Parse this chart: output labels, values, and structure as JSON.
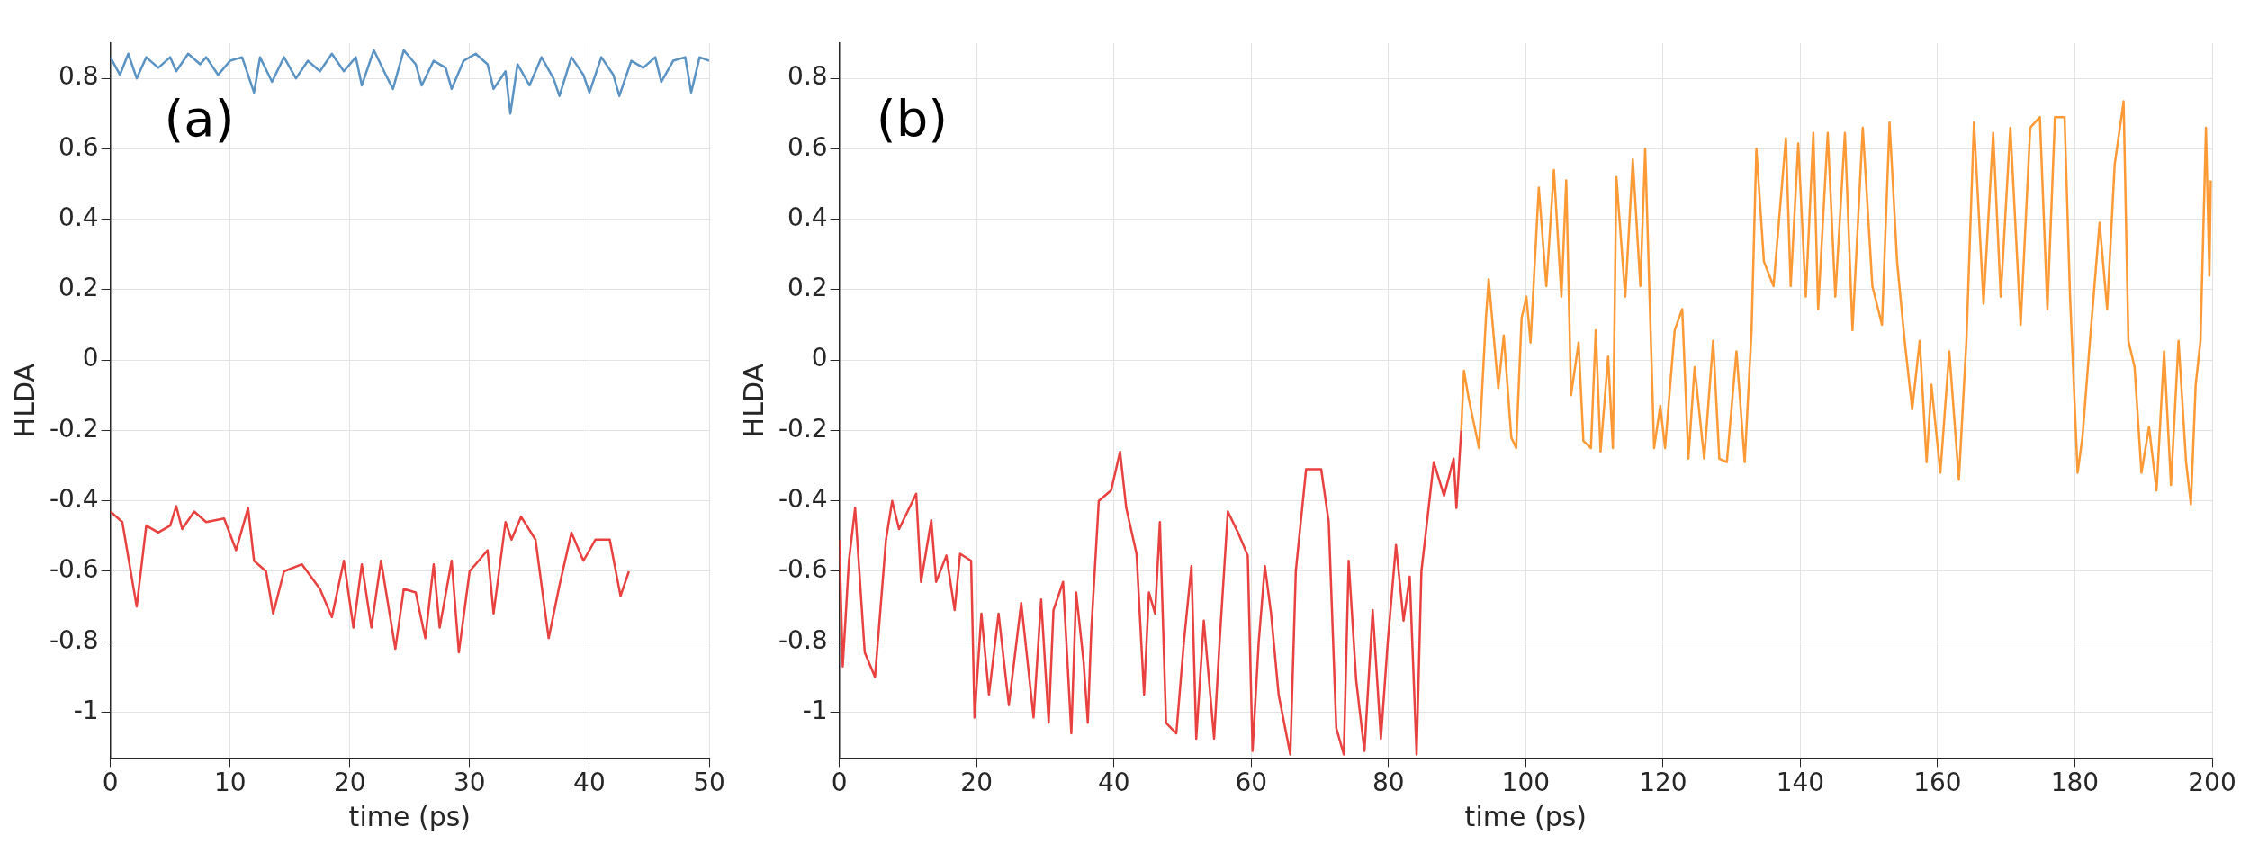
{
  "chart_data": [
    {
      "type": "line",
      "annotations": [
        "(a)"
      ],
      "xlabel": "time (ps)",
      "ylabel": "HLDA",
      "xlim": [
        0,
        50
      ],
      "xticks": [
        0,
        10,
        20,
        30,
        40,
        50
      ],
      "ylim": [
        -1.13,
        0.9
      ],
      "yticks": [
        -1,
        -0.8,
        -0.6,
        -0.4,
        -0.2,
        0,
        0.2,
        0.4,
        0.6,
        0.8
      ],
      "grid": true,
      "legend": false,
      "marker": "none",
      "line_style": "solid",
      "series": [
        {
          "color": "#5b93c4",
          "x": [
            0,
            0.8,
            1.5,
            2.2,
            3,
            4,
            5,
            5.5,
            6.5,
            7.5,
            8,
            9,
            10,
            11,
            12,
            12.5,
            13.5,
            14.5,
            15.5,
            16.5,
            17.5,
            18.5,
            19.5,
            20.5,
            21,
            22,
            23,
            23.6,
            24.5,
            25.5,
            26,
            27,
            28,
            28.5,
            29.5,
            30.5,
            31.5,
            32,
            33,
            33.4,
            34,
            35,
            36,
            37,
            37.5,
            38.5,
            39.5,
            40,
            41,
            42,
            42.5,
            43.5,
            44.5,
            45.5,
            46,
            47,
            48,
            48.5,
            49.2,
            50
          ],
          "values": [
            0.86,
            0.81,
            0.87,
            0.8,
            0.86,
            0.83,
            0.86,
            0.82,
            0.87,
            0.84,
            0.86,
            0.81,
            0.85,
            0.86,
            0.76,
            0.86,
            0.79,
            0.86,
            0.8,
            0.85,
            0.82,
            0.87,
            0.82,
            0.86,
            0.78,
            0.88,
            0.81,
            0.77,
            0.88,
            0.84,
            0.78,
            0.85,
            0.83,
            0.77,
            0.85,
            0.87,
            0.84,
            0.77,
            0.82,
            0.7,
            0.84,
            0.78,
            0.86,
            0.8,
            0.75,
            0.86,
            0.81,
            0.76,
            0.86,
            0.81,
            0.75,
            0.85,
            0.83,
            0.86,
            0.79,
            0.85,
            0.86,
            0.76,
            0.86,
            0.85
          ]
        },
        {
          "color": "#e8413f",
          "x": [
            0,
            1,
            2.2,
            3,
            4,
            5,
            5.5,
            6,
            7,
            8,
            9.5,
            10.5,
            11.5,
            12,
            13,
            13.6,
            14.5,
            16,
            17.5,
            18.5,
            19.5,
            20.3,
            21,
            21.8,
            22.6,
            23.8,
            24.5,
            25.5,
            26.3,
            27,
            27.5,
            28.5,
            29.1,
            30,
            31.5,
            32,
            33,
            33.5,
            34.3,
            35.5,
            36.6,
            37.5,
            38.5,
            39.5,
            40.5,
            41.7,
            42.6,
            43.3
          ],
          "values": [
            -0.43,
            -0.46,
            -0.7,
            -0.47,
            -0.49,
            -0.47,
            -0.415,
            -0.48,
            -0.43,
            -0.46,
            -0.45,
            -0.54,
            -0.42,
            -0.57,
            -0.6,
            -0.72,
            -0.6,
            -0.58,
            -0.65,
            -0.73,
            -0.57,
            -0.76,
            -0.58,
            -0.76,
            -0.57,
            -0.82,
            -0.65,
            -0.66,
            -0.79,
            -0.58,
            -0.76,
            -0.57,
            -0.83,
            -0.6,
            -0.54,
            -0.72,
            -0.46,
            -0.51,
            -0.445,
            -0.51,
            -0.79,
            -0.64,
            -0.49,
            -0.57,
            -0.51,
            -0.51,
            -0.67,
            -0.6
          ]
        }
      ]
    },
    {
      "type": "line",
      "annotations": [
        "(b)"
      ],
      "xlabel": "time (ps)",
      "ylabel": "HLDA",
      "xlim": [
        0,
        200
      ],
      "xticks": [
        0,
        20,
        40,
        60,
        80,
        100,
        120,
        140,
        160,
        180,
        200
      ],
      "ylim": [
        -1.13,
        0.9
      ],
      "yticks": [
        -1,
        -0.8,
        -0.6,
        -0.4,
        -0.2,
        0,
        0.2,
        0.4,
        0.6,
        0.8
      ],
      "grid": true,
      "legend": false,
      "marker": "none",
      "line_style": "solid",
      "series": [
        {
          "color": "#e8413f",
          "x": [
            0,
            0.5,
            1.4,
            2.3,
            3.7,
            5.2,
            6.8,
            7.7,
            8.7,
            11.2,
            11.9,
            13.4,
            14.1,
            15.6,
            16.8,
            17.6,
            19.2,
            19.7,
            20.7,
            21.8,
            23.2,
            24.7,
            26.5,
            28.3,
            29.4,
            30.5,
            31.2,
            32.6,
            33.8,
            34.5,
            35.6,
            36.2,
            36.7,
            37.8,
            39.6,
            40.9,
            41.8,
            43.3,
            44.4,
            45.1,
            46,
            46.7,
            47.6,
            49.1,
            50.2,
            51.3,
            52,
            53.1,
            54.6,
            55.4,
            56.6,
            58.2,
            59.5,
            60.2,
            61.1,
            62,
            62.9,
            64,
            65.7,
            66.5,
            68,
            70.2,
            71.3,
            72.4,
            73.5,
            74.2,
            75.3,
            76.5,
            77.7,
            78.9,
            79.9,
            81.1,
            82.2,
            83.1,
            84.1,
            84.8,
            85.5,
            86.6,
            88.1,
            89.5,
            89.9,
            90.6
          ],
          "values": [
            -0.51,
            -0.87,
            -0.57,
            -0.42,
            -0.83,
            -0.9,
            -0.51,
            -0.4,
            -0.48,
            -0.38,
            -0.63,
            -0.455,
            -0.63,
            -0.555,
            -0.71,
            -0.55,
            -0.57,
            -1.015,
            -0.72,
            -0.95,
            -0.72,
            -0.98,
            -0.69,
            -1.015,
            -0.68,
            -1.03,
            -0.71,
            -0.63,
            -1.06,
            -0.66,
            -0.86,
            -1.03,
            -0.77,
            -0.4,
            -0.37,
            -0.26,
            -0.42,
            -0.55,
            -0.95,
            -0.66,
            -0.72,
            -0.46,
            -1.03,
            -1.06,
            -0.8,
            -0.585,
            -1.075,
            -0.74,
            -1.075,
            -0.8,
            -0.43,
            -0.495,
            -0.555,
            -1.11,
            -0.8,
            -0.585,
            -0.72,
            -0.95,
            -1.12,
            -0.6,
            -0.31,
            -0.31,
            -0.46,
            -1.045,
            -1.12,
            -0.57,
            -0.91,
            -1.11,
            -0.71,
            -1.075,
            -0.8,
            -0.525,
            -0.74,
            -0.615,
            -1.12,
            -0.6,
            -0.48,
            -0.29,
            -0.385,
            -0.28,
            -0.42,
            -0.2
          ]
        },
        {
          "color": "#fd9a36",
          "x": [
            90.6,
            91,
            91.7,
            93.2,
            94.2,
            94.6,
            96,
            96.8,
            97.9,
            98.6,
            99.4,
            100.1,
            100.7,
            101.9,
            103,
            104.1,
            105.2,
            105.9,
            106.6,
            107.7,
            108.4,
            109.5,
            110.2,
            110.9,
            112,
            112.7,
            113.2,
            114.5,
            115.6,
            116.7,
            117.4,
            118.7,
            119.6,
            120.3,
            121.7,
            122.8,
            123.7,
            124.6,
            126,
            127.3,
            128.2,
            129.3,
            130.7,
            131.9,
            132.9,
            133.6,
            134.7,
            136.1,
            137.9,
            138.6,
            139.7,
            140.8,
            141.9,
            142.6,
            144,
            145.1,
            146.5,
            147.6,
            149.1,
            150.5,
            151.9,
            153,
            154.1,
            155.2,
            156.3,
            157.4,
            158.4,
            159.1,
            160.4,
            161.7,
            163.1,
            164.2,
            165.3,
            166.7,
            168.1,
            169.2,
            170.6,
            172.1,
            173.5,
            174.9,
            176,
            177.1,
            178.5,
            179.3,
            180.4,
            181.1,
            182.2,
            183.6,
            184.7,
            185.8,
            187.1,
            187.8,
            188.7,
            189.7,
            190.8,
            191.9,
            193,
            194,
            195.1,
            196.2,
            196.9,
            197.6,
            198.3,
            199.1,
            199.6,
            199.8
          ],
          "values": [
            -0.2,
            -0.03,
            -0.11,
            -0.25,
            0.12,
            0.23,
            -0.08,
            0.07,
            -0.22,
            -0.25,
            0.12,
            0.18,
            0.05,
            0.49,
            0.21,
            0.54,
            0.18,
            0.51,
            -0.1,
            0.05,
            -0.23,
            -0.25,
            0.085,
            -0.26,
            0.01,
            -0.25,
            0.52,
            0.18,
            0.57,
            0.21,
            0.6,
            -0.25,
            -0.13,
            -0.25,
            0.085,
            0.145,
            -0.28,
            -0.02,
            -0.28,
            0.055,
            -0.28,
            -0.29,
            0.025,
            -0.29,
            0.085,
            0.6,
            0.28,
            0.21,
            0.63,
            0.21,
            0.615,
            0.18,
            0.645,
            0.145,
            0.645,
            0.18,
            0.645,
            0.085,
            0.66,
            0.21,
            0.1,
            0.675,
            0.28,
            0.055,
            -0.14,
            0.055,
            -0.29,
            -0.07,
            -0.32,
            0.025,
            -0.34,
            0.055,
            0.675,
            0.16,
            0.645,
            0.18,
            0.66,
            0.1,
            0.66,
            0.69,
            0.145,
            0.69,
            0.69,
            0.18,
            -0.32,
            -0.22,
            0.055,
            0.39,
            0.145,
            0.555,
            0.735,
            0.055,
            -0.02,
            -0.32,
            -0.19,
            -0.37,
            0.025,
            -0.355,
            0.055,
            -0.29,
            -0.41,
            -0.07,
            0.055,
            0.66,
            0.24,
            0.51
          ]
        }
      ]
    }
  ]
}
